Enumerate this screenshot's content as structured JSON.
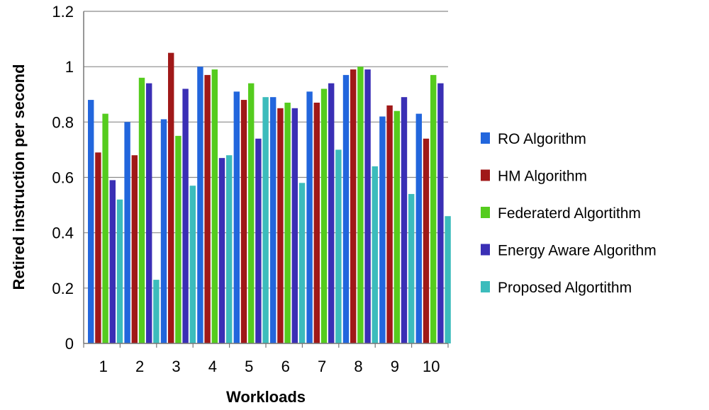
{
  "chart_data": {
    "type": "bar",
    "title": "",
    "xlabel": "Workloads",
    "ylabel": "Retired instruction per second",
    "ylim": [
      0,
      1.2
    ],
    "yticks": [
      "0",
      "0.2",
      "0.4",
      "0.6",
      "0.8",
      "1",
      "1.2"
    ],
    "categories": [
      "1",
      "2",
      "3",
      "4",
      "5",
      "6",
      "7",
      "8",
      "9",
      "10"
    ],
    "grid": "horizontal",
    "legend_position": "right",
    "series": [
      {
        "name": "RO Algorithm",
        "color": "#2266dd",
        "values": [
          0.88,
          0.8,
          0.81,
          1.0,
          0.91,
          0.89,
          0.91,
          0.97,
          0.82,
          0.83
        ]
      },
      {
        "name": "HM Algorithm",
        "color": "#a01818",
        "values": [
          0.69,
          0.68,
          1.05,
          0.97,
          0.88,
          0.85,
          0.87,
          0.99,
          0.86,
          0.74
        ]
      },
      {
        "name": "Federaterd Algortithm",
        "color": "#55cc1e",
        "values": [
          0.83,
          0.96,
          0.75,
          0.99,
          0.94,
          0.87,
          0.92,
          1.0,
          0.84,
          0.97
        ]
      },
      {
        "name": "Energy Aware Algorithm",
        "color": "#3a2fb5",
        "values": [
          0.59,
          0.94,
          0.92,
          0.67,
          0.74,
          0.85,
          0.94,
          0.99,
          0.89,
          0.94
        ]
      },
      {
        "name": "Proposed Algortithm",
        "color": "#3cbcbc",
        "values": [
          0.52,
          0.23,
          0.57,
          0.68,
          0.89,
          0.58,
          0.7,
          0.64,
          0.54,
          0.46
        ]
      }
    ]
  }
}
